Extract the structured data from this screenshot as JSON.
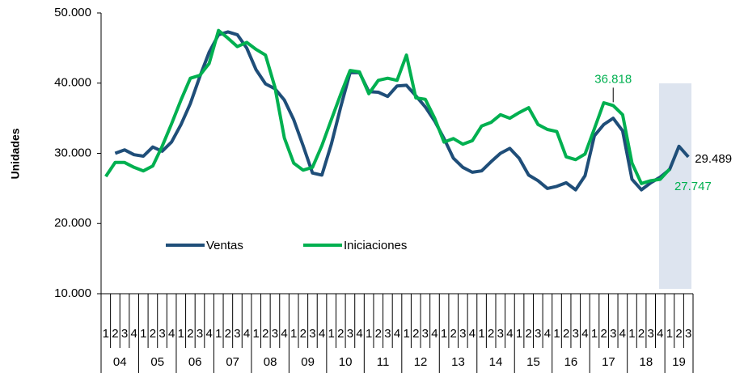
{
  "chart_data": {
    "type": "line",
    "y_label": "Unidades",
    "categories": [
      "1",
      "2",
      "3",
      "4",
      "1",
      "2",
      "3",
      "4",
      "1",
      "2",
      "3",
      "4",
      "1",
      "2",
      "3",
      "4",
      "1",
      "2",
      "3",
      "4",
      "1",
      "2",
      "3",
      "4",
      "1",
      "2",
      "3",
      "4",
      "1",
      "2",
      "3",
      "4",
      "1",
      "2",
      "3",
      "4",
      "1",
      "2",
      "3",
      "4",
      "1",
      "2",
      "3",
      "4",
      "1",
      "2",
      "3",
      "4",
      "1",
      "2",
      "3",
      "4",
      "1",
      "2",
      "3",
      "4",
      "1",
      "2",
      "3",
      "4",
      "1",
      "2",
      "3"
    ],
    "category_groups": [
      "04",
      "05",
      "06",
      "07",
      "08",
      "09",
      "10",
      "11",
      "12",
      "13",
      "14",
      "15",
      "16",
      "17",
      "18",
      "19"
    ],
    "series": [
      {
        "name": "Ventas",
        "color": "#1F4E79",
        "values": [
          null,
          30000,
          30500,
          29800,
          29600,
          30900,
          30300,
          31600,
          34100,
          37100,
          40900,
          44400,
          46900,
          47300,
          46900,
          45000,
          41900,
          39900,
          39200,
          37600,
          34800,
          31100,
          27200,
          26900,
          31300,
          36600,
          41500,
          41500,
          38800,
          38700,
          38100,
          39600,
          39700,
          38200,
          36600,
          34600,
          32100,
          29300,
          28000,
          27300,
          27500,
          28800,
          30000,
          30700,
          29300,
          26900,
          26100,
          25000,
          25300,
          25800,
          24800,
          26800,
          32500,
          34100,
          35000,
          33200,
          26300,
          24800,
          25800,
          26600,
          27700,
          31000,
          29489
        ],
        "value_labels": [
          null,
          null,
          null,
          null,
          null,
          null,
          null,
          null,
          null,
          null,
          null,
          null,
          null,
          null,
          null,
          null,
          null,
          null,
          null,
          null,
          null,
          null,
          null,
          null,
          null,
          null,
          null,
          null,
          null,
          null,
          null,
          null,
          null,
          null,
          null,
          null,
          null,
          null,
          null,
          null,
          null,
          null,
          null,
          null,
          null,
          null,
          null,
          null,
          null,
          null,
          null,
          null,
          null,
          null,
          null,
          null,
          null,
          null,
          null,
          null,
          null,
          null,
          "29.489"
        ]
      },
      {
        "name": "Iniciaciones",
        "color": "#00B050",
        "values": [
          26700,
          28700,
          28700,
          28000,
          27500,
          28200,
          31000,
          34200,
          37600,
          40700,
          41100,
          42800,
          47500,
          46400,
          45200,
          45800,
          44800,
          44000,
          39400,
          32200,
          28600,
          27600,
          28000,
          31100,
          34800,
          38400,
          41800,
          41600,
          38500,
          40400,
          40700,
          40400,
          44000,
          37900,
          37700,
          35000,
          31600,
          32100,
          31300,
          31800,
          33900,
          34400,
          35500,
          35000,
          35800,
          36500,
          34100,
          33400,
          33100,
          29500,
          29100,
          29900,
          33500,
          37200,
          36818,
          35500,
          28600,
          25700,
          26100,
          26300,
          27747,
          null,
          null
        ],
        "value_labels": [
          null,
          null,
          null,
          null,
          null,
          null,
          null,
          null,
          null,
          null,
          null,
          null,
          null,
          null,
          null,
          null,
          null,
          null,
          null,
          null,
          null,
          null,
          null,
          null,
          null,
          null,
          null,
          null,
          null,
          null,
          null,
          null,
          null,
          null,
          null,
          null,
          null,
          null,
          null,
          null,
          null,
          null,
          null,
          null,
          null,
          null,
          null,
          null,
          null,
          null,
          null,
          null,
          null,
          null,
          "36.818",
          null,
          null,
          null,
          null,
          null,
          "27.747",
          null,
          null
        ]
      }
    ],
    "ylim": [
      10000,
      50000
    ],
    "yticks": [
      {
        "value": 10000,
        "label": "10.000"
      },
      {
        "value": 20000,
        "label": "20.000"
      },
      {
        "value": 30000,
        "label": "30.000"
      },
      {
        "value": 40000,
        "label": "40.000"
      },
      {
        "value": 50000,
        "label": "50.000"
      }
    ],
    "grid": false
  }
}
